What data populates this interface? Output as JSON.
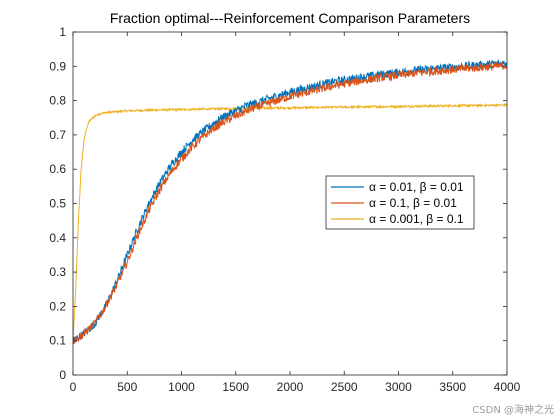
{
  "chart_data": {
    "type": "line",
    "title": "Fraction optimal---Reinforcement Comparison Parameters",
    "xlabel": "",
    "ylabel": "",
    "xlim": [
      0,
      4000
    ],
    "ylim": [
      0,
      1
    ],
    "xticks": [
      0,
      500,
      1000,
      1500,
      2000,
      2500,
      3000,
      3500,
      4000
    ],
    "yticks": [
      0,
      0.1,
      0.2,
      0.3,
      0.4,
      0.5,
      0.6,
      0.7,
      0.8,
      0.9,
      1
    ],
    "grid": false,
    "legend_position": "middle-right",
    "series": [
      {
        "name": "α = 0.01, β = 0.01",
        "color": "#0072BD",
        "x": [
          0,
          100,
          200,
          300,
          400,
          500,
          600,
          700,
          800,
          900,
          1000,
          1100,
          1200,
          1300,
          1400,
          1500,
          1600,
          1700,
          1800,
          1900,
          2000,
          2200,
          2400,
          2600,
          2800,
          3000,
          3200,
          3400,
          3600,
          3800,
          4000
        ],
        "values": [
          0.1,
          0.12,
          0.15,
          0.2,
          0.27,
          0.35,
          0.43,
          0.5,
          0.56,
          0.61,
          0.65,
          0.685,
          0.71,
          0.735,
          0.755,
          0.77,
          0.785,
          0.795,
          0.805,
          0.815,
          0.825,
          0.84,
          0.855,
          0.865,
          0.875,
          0.882,
          0.89,
          0.895,
          0.9,
          0.905,
          0.91
        ]
      },
      {
        "name": "α = 0.1, β = 0.01",
        "color": "#D95319",
        "x": [
          0,
          100,
          200,
          300,
          400,
          500,
          600,
          700,
          800,
          900,
          1000,
          1100,
          1200,
          1300,
          1400,
          1500,
          1600,
          1700,
          1800,
          1900,
          2000,
          2200,
          2400,
          2600,
          2800,
          3000,
          3200,
          3400,
          3600,
          3800,
          4000
        ],
        "values": [
          0.1,
          0.12,
          0.15,
          0.2,
          0.26,
          0.33,
          0.41,
          0.48,
          0.54,
          0.59,
          0.63,
          0.665,
          0.695,
          0.72,
          0.74,
          0.755,
          0.77,
          0.782,
          0.792,
          0.802,
          0.812,
          0.828,
          0.843,
          0.855,
          0.865,
          0.874,
          0.882,
          0.888,
          0.893,
          0.898,
          0.902
        ]
      },
      {
        "name": "α = 0.001, β = 0.1",
        "color": "#EDB120",
        "x": [
          0,
          25,
          50,
          75,
          100,
          125,
          150,
          200,
          250,
          300,
          400,
          500,
          700,
          1000,
          1500,
          2000,
          2500,
          3000,
          3500,
          4000
        ],
        "values": [
          0.1,
          0.25,
          0.45,
          0.6,
          0.68,
          0.72,
          0.74,
          0.755,
          0.762,
          0.765,
          0.768,
          0.77,
          0.772,
          0.774,
          0.777,
          0.779,
          0.781,
          0.783,
          0.785,
          0.787
        ]
      }
    ]
  },
  "watermark": "CSDN @海神之光"
}
